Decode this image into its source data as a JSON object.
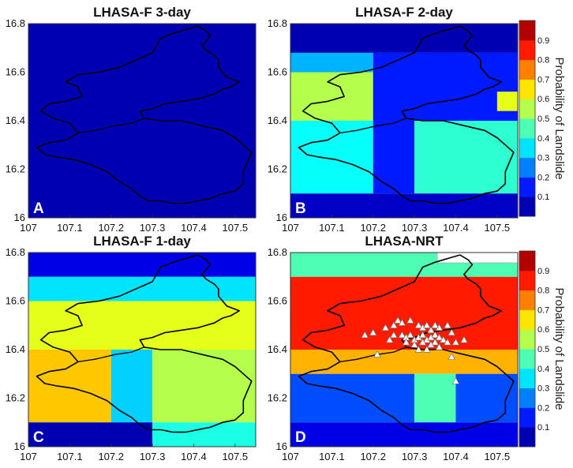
{
  "chart_data": {
    "type": "heatmap",
    "colorbar": {
      "label": "Probability of Landslide",
      "ticks": [
        0.1,
        0.2,
        0.3,
        0.4,
        0.5,
        0.6,
        0.7,
        0.8,
        0.9
      ],
      "range": [
        0,
        1
      ],
      "colormap": "jet"
    },
    "axes": {
      "x": {
        "range": [
          107,
          107.55
        ],
        "ticks": [
          107,
          107.1,
          107.2,
          107.3,
          107.4,
          107.5
        ],
        "tick_labels": [
          "107",
          "107.1",
          "107.2",
          "107.3",
          "107.4",
          "107.5"
        ]
      },
      "y": {
        "range": [
          16,
          16.8
        ],
        "ticks": [
          16,
          16.2,
          16.4,
          16.6,
          16.8
        ],
        "tick_labels": [
          "16",
          "16.2",
          "16.4",
          "16.6",
          "16.8"
        ]
      }
    },
    "panels": [
      {
        "id": "A",
        "title": "LHASA-F 3-day",
        "regions": [
          {
            "x": [
              107,
              107.55
            ],
            "y": [
              16,
              16.8
            ],
            "value": 0.05
          }
        ],
        "landslides": []
      },
      {
        "id": "B",
        "title": "LHASA-F 2-day",
        "regions": [
          {
            "x": [
              107,
              107.55
            ],
            "y": [
              16.68,
              16.8
            ],
            "value": 0.05
          },
          {
            "x": [
              107,
              107.2
            ],
            "y": [
              16.6,
              16.68
            ],
            "value": 0.3
          },
          {
            "x": [
              107,
              107.2
            ],
            "y": [
              16.4,
              16.6
            ],
            "value": 0.55
          },
          {
            "x": [
              107,
              107.2
            ],
            "y": [
              16.1,
              16.4
            ],
            "value": 0.38
          },
          {
            "x": [
              107.2,
              107.55
            ],
            "y": [
              16.4,
              16.68
            ],
            "value": 0.15
          },
          {
            "x": [
              107.2,
              107.3
            ],
            "y": [
              16.1,
              16.4
            ],
            "value": 0.15
          },
          {
            "x": [
              107.3,
              107.55
            ],
            "y": [
              16.1,
              16.4
            ],
            "value": 0.42
          },
          {
            "x": [
              107.5,
              107.55
            ],
            "y": [
              16.44,
              16.52
            ],
            "value": 0.6
          },
          {
            "x": [
              107,
              107.55
            ],
            "y": [
              16,
              16.1
            ],
            "value": 0.07
          }
        ],
        "landslides": []
      },
      {
        "id": "C",
        "title": "LHASA-F 1-day",
        "regions": [
          {
            "x": [
              107,
              107.55
            ],
            "y": [
              16.7,
              16.8
            ],
            "value": 0.1
          },
          {
            "x": [
              107,
              107.55
            ],
            "y": [
              16.6,
              16.7
            ],
            "value": 0.35
          },
          {
            "x": [
              107,
              107.55
            ],
            "y": [
              16.4,
              16.6
            ],
            "value": 0.6
          },
          {
            "x": [
              107,
              107.2
            ],
            "y": [
              16.1,
              16.4
            ],
            "value": 0.68
          },
          {
            "x": [
              107.2,
              107.3
            ],
            "y": [
              16.1,
              16.4
            ],
            "value": 0.33
          },
          {
            "x": [
              107.3,
              107.55
            ],
            "y": [
              16.1,
              16.4
            ],
            "value": 0.55
          },
          {
            "x": [
              107,
              107.3
            ],
            "y": [
              16,
              16.1
            ],
            "value": 0.05
          },
          {
            "x": [
              107.3,
              107.55
            ],
            "y": [
              16,
              16.1
            ],
            "value": 0.4
          }
        ],
        "landslides": []
      },
      {
        "id": "D",
        "title": "LHASA-NRT",
        "regions": [
          {
            "x": [
              107,
              107.55
            ],
            "y": [
              16.7,
              16.8
            ],
            "value": 0.45
          },
          {
            "x": [
              107,
              107.55
            ],
            "y": [
              16.4,
              16.7
            ],
            "value": 0.85
          },
          {
            "x": [
              107,
              107.55
            ],
            "y": [
              16.3,
              16.4
            ],
            "value": 0.7
          },
          {
            "x": [
              107,
              107.3
            ],
            "y": [
              16.1,
              16.3
            ],
            "value": 0.2
          },
          {
            "x": [
              107.3,
              107.4
            ],
            "y": [
              16.1,
              16.3
            ],
            "value": 0.45
          },
          {
            "x": [
              107.4,
              107.55
            ],
            "y": [
              16.1,
              16.3
            ],
            "value": 0.2
          },
          {
            "x": [
              107,
              107.55
            ],
            "y": [
              16,
              16.1
            ],
            "value": 0.1
          }
        ],
        "landslides": [
          [
            107.23,
            16.49
          ],
          [
            107.25,
            16.5
          ],
          [
            107.26,
            16.52
          ],
          [
            107.27,
            16.51
          ],
          [
            107.29,
            16.52
          ],
          [
            107.31,
            16.5
          ],
          [
            107.32,
            16.49
          ],
          [
            107.33,
            16.5
          ],
          [
            107.34,
            16.48
          ],
          [
            107.36,
            16.49
          ],
          [
            107.27,
            16.46
          ],
          [
            107.28,
            16.45
          ],
          [
            107.29,
            16.46
          ],
          [
            107.3,
            16.44
          ],
          [
            107.31,
            16.45
          ],
          [
            107.32,
            16.46
          ],
          [
            107.33,
            16.44
          ],
          [
            107.34,
            16.45
          ],
          [
            107.35,
            16.46
          ],
          [
            107.36,
            16.45
          ],
          [
            107.37,
            16.44
          ],
          [
            107.3,
            16.42
          ],
          [
            107.32,
            16.43
          ],
          [
            107.34,
            16.42
          ],
          [
            107.35,
            16.43
          ],
          [
            107.28,
            16.43
          ],
          [
            107.38,
            16.43
          ],
          [
            107.4,
            16.43
          ],
          [
            107.42,
            16.44
          ],
          [
            107.18,
            16.46
          ],
          [
            107.2,
            16.47
          ],
          [
            107.24,
            16.44
          ],
          [
            107.38,
            16.5
          ],
          [
            107.39,
            16.47
          ],
          [
            107.31,
            16.4
          ],
          [
            107.33,
            16.4
          ],
          [
            107.36,
            16.41
          ],
          [
            107.39,
            16.37
          ],
          [
            107.21,
            16.38
          ],
          [
            107.4,
            16.27
          ],
          [
            107.25,
            16.46
          ],
          [
            107.35,
            16.5
          ]
        ]
      }
    ],
    "boundary": [
      [
        107.32,
        16.74
      ],
      [
        107.35,
        16.76
      ],
      [
        107.37,
        16.77
      ],
      [
        107.39,
        16.78
      ],
      [
        107.41,
        16.79
      ],
      [
        107.43,
        16.77
      ],
      [
        107.44,
        16.75
      ],
      [
        107.43,
        16.73
      ],
      [
        107.42,
        16.71
      ],
      [
        107.43,
        16.69
      ],
      [
        107.45,
        16.67
      ],
      [
        107.46,
        16.65
      ],
      [
        107.46,
        16.62
      ],
      [
        107.48,
        16.58
      ],
      [
        107.51,
        16.56
      ],
      [
        107.49,
        16.54
      ],
      [
        107.47,
        16.53
      ],
      [
        107.45,
        16.51
      ],
      [
        107.41,
        16.49
      ],
      [
        107.37,
        16.48
      ],
      [
        107.33,
        16.47
      ],
      [
        107.3,
        16.45
      ],
      [
        107.27,
        16.44
      ],
      [
        107.28,
        16.41
      ],
      [
        107.32,
        16.4
      ],
      [
        107.37,
        16.4
      ],
      [
        107.42,
        16.38
      ],
      [
        107.47,
        16.36
      ],
      [
        107.5,
        16.33
      ],
      [
        107.52,
        16.3
      ],
      [
        107.54,
        16.27
      ],
      [
        107.53,
        16.23
      ],
      [
        107.52,
        16.19
      ],
      [
        107.52,
        16.14
      ],
      [
        107.5,
        16.11
      ],
      [
        107.47,
        16.1
      ],
      [
        107.44,
        16.08
      ],
      [
        107.41,
        16.07
      ],
      [
        107.38,
        16.06
      ],
      [
        107.35,
        16.06
      ],
      [
        107.32,
        16.07
      ],
      [
        107.29,
        16.07
      ],
      [
        107.27,
        16.09
      ],
      [
        107.25,
        16.12
      ],
      [
        107.22,
        16.15
      ],
      [
        107.19,
        16.19
      ],
      [
        107.15,
        16.22
      ],
      [
        107.11,
        16.24
      ],
      [
        107.07,
        16.25
      ],
      [
        107.04,
        16.26
      ],
      [
        107.02,
        16.29
      ],
      [
        107.05,
        16.31
      ],
      [
        107.09,
        16.32
      ],
      [
        107.12,
        16.35
      ],
      [
        107.1,
        16.39
      ],
      [
        107.06,
        16.41
      ],
      [
        107.03,
        16.44
      ],
      [
        107.05,
        16.47
      ],
      [
        107.09,
        16.48
      ],
      [
        107.13,
        16.5
      ],
      [
        107.12,
        16.54
      ],
      [
        107.09,
        16.56
      ],
      [
        107.12,
        16.59
      ],
      [
        107.17,
        16.6
      ],
      [
        107.22,
        16.62
      ],
      [
        107.26,
        16.65
      ],
      [
        107.3,
        16.68
      ],
      [
        107.31,
        16.71
      ],
      [
        107.32,
        16.74
      ]
    ],
    "inner_boundary": [
      [
        107.12,
        16.35
      ],
      [
        107.16,
        16.36
      ],
      [
        107.21,
        16.38
      ],
      [
        107.25,
        16.39
      ],
      [
        107.28,
        16.41
      ]
    ]
  }
}
